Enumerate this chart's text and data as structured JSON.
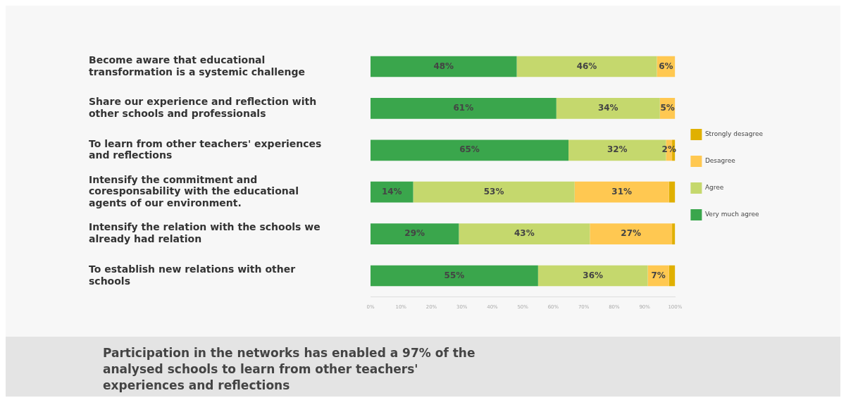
{
  "chart_data": {
    "type": "bar",
    "orientation": "horizontal",
    "stacked": true,
    "categories": [
      "Become aware that educational transformation is a systemic challenge",
      "Share our experience and reflection with other schools and professionals",
      "To learn from other teachers' experiences and reflections",
      "Intensify the commitment and coresponsability with the educational agents of our environment.",
      "Intensify the relation with the schools we already had relation",
      "To establish new relations with other schools"
    ],
    "series": [
      {
        "name": "Very much agree",
        "color": "#3aa64c",
        "values": [
          48,
          61,
          65,
          14,
          29,
          55
        ],
        "value_labels": [
          "48%",
          "61%",
          "65%",
          "14%",
          "29%",
          "55%"
        ]
      },
      {
        "name": "Agree",
        "color": "#c5d86d",
        "values": [
          46,
          34,
          32,
          53,
          43,
          36
        ],
        "value_labels": [
          "46%",
          "34%",
          "32%",
          "53%",
          "43%",
          "36%"
        ]
      },
      {
        "name": "Desagree",
        "color": "#ffc851",
        "values": [
          6,
          5,
          2,
          31,
          27,
          7
        ],
        "value_labels": [
          "6%",
          "5%",
          "2%",
          "31%",
          "27%",
          "7%"
        ]
      },
      {
        "name": "Strongly desagree",
        "color": "#e0b000",
        "values": [
          0,
          0,
          1,
          2,
          1,
          2
        ],
        "value_labels": [
          null,
          null,
          null,
          null,
          null,
          null
        ]
      }
    ],
    "xlim": [
      0,
      100
    ],
    "xticks": [
      {
        "value": 0,
        "label": "0%"
      },
      {
        "value": 10,
        "label": "10%"
      },
      {
        "value": 20,
        "label": "20%"
      },
      {
        "value": 30,
        "label": "30%"
      },
      {
        "value": 40,
        "label": "40%"
      },
      {
        "value": 50,
        "label": "50%"
      },
      {
        "value": 60,
        "label": "60%"
      },
      {
        "value": 70,
        "label": "70%"
      },
      {
        "value": 80,
        "label": "80%"
      },
      {
        "value": 90,
        "label": "90%"
      },
      {
        "value": 100,
        "label": "100%"
      }
    ],
    "grid": false,
    "legend": "right",
    "annotations": [
      "Participation in the networks has enabled a 97% of the analysed schools to learn from other teachers' experiences and reflections"
    ]
  }
}
